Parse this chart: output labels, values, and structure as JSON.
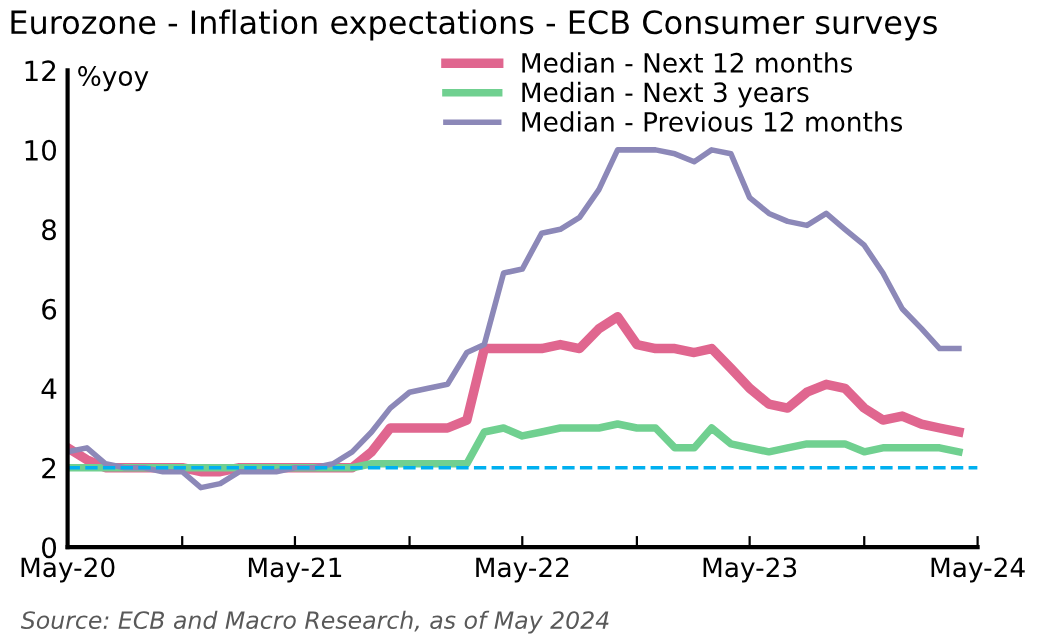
{
  "chart_data": {
    "type": "line",
    "title": "Eurozone - Inflation expectations - ECB Consumer surveys",
    "ylabel": "%yoy",
    "x": [
      "2020-05",
      "2020-06",
      "2020-07",
      "2020-08",
      "2020-09",
      "2020-10",
      "2020-11",
      "2020-12",
      "2021-01",
      "2021-02",
      "2021-03",
      "2021-04",
      "2021-05",
      "2021-06",
      "2021-07",
      "2021-08",
      "2021-09",
      "2021-10",
      "2021-11",
      "2021-12",
      "2022-01",
      "2022-02",
      "2022-03",
      "2022-04",
      "2022-05",
      "2022-06",
      "2022-07",
      "2022-08",
      "2022-09",
      "2022-10",
      "2022-11",
      "2022-12",
      "2023-01",
      "2023-02",
      "2023-03",
      "2023-04",
      "2023-05",
      "2023-06",
      "2023-07",
      "2023-08",
      "2023-09",
      "2023-10",
      "2023-11",
      "2023-12",
      "2024-01",
      "2024-02",
      "2024-03",
      "2024-04"
    ],
    "series": [
      {
        "name": "Median - Next 12 months",
        "color": "#e0668f",
        "values": [
          2.5,
          2.2,
          2.0,
          2.0,
          2.0,
          2.0,
          2.0,
          1.9,
          1.9,
          2.0,
          2.0,
          2.0,
          2.0,
          2.0,
          2.0,
          2.0,
          2.4,
          3.0,
          3.0,
          3.0,
          3.0,
          3.2,
          5.0,
          5.0,
          5.0,
          5.0,
          5.1,
          5.0,
          5.5,
          5.8,
          5.1,
          5.0,
          5.0,
          4.9,
          5.0,
          4.5,
          4.0,
          3.6,
          3.5,
          3.9,
          4.1,
          4.0,
          3.5,
          3.2,
          3.3,
          3.1,
          3.0,
          2.9
        ]
      },
      {
        "name": "Median - Next 3 years",
        "color": "#70d090",
        "values": [
          2.0,
          2.0,
          2.0,
          2.0,
          2.0,
          2.0,
          2.0,
          2.0,
          2.0,
          2.0,
          2.0,
          2.0,
          2.0,
          2.0,
          2.0,
          2.0,
          2.1,
          2.1,
          2.1,
          2.1,
          2.1,
          2.1,
          2.9,
          3.0,
          2.8,
          2.9,
          3.0,
          3.0,
          3.0,
          3.1,
          3.0,
          3.0,
          2.5,
          2.5,
          3.0,
          2.6,
          2.5,
          2.4,
          2.5,
          2.6,
          2.6,
          2.6,
          2.4,
          2.5,
          2.5,
          2.5,
          2.5,
          2.4
        ]
      },
      {
        "name": "Median - Previous 12 months",
        "color": "#8c88b8",
        "values": [
          2.4,
          2.5,
          2.1,
          2.0,
          2.0,
          1.9,
          1.9,
          1.5,
          1.6,
          1.9,
          1.9,
          1.9,
          2.0,
          2.0,
          2.1,
          2.4,
          2.9,
          3.5,
          3.9,
          4.0,
          4.1,
          4.9,
          5.1,
          6.9,
          7.0,
          7.9,
          8.0,
          8.3,
          9.0,
          10.0,
          10.0,
          10.0,
          9.9,
          9.7,
          10.0,
          9.9,
          8.8,
          8.4,
          8.2,
          8.1,
          8.4,
          8.0,
          7.6,
          6.9,
          6.0,
          5.5,
          5.0,
          5.0
        ]
      }
    ],
    "ref_lines": [
      {
        "axis": "y",
        "value": 2,
        "color": "#00b0f0",
        "line_style": "dashed"
      }
    ],
    "xlim": [
      "2020-05",
      "2024-05"
    ],
    "xticks": [
      {
        "value": "2020-05",
        "label": "May-20"
      },
      {
        "value": "2020-11",
        "label": null
      },
      {
        "value": "2021-05",
        "label": "May-21"
      },
      {
        "value": "2021-11",
        "label": null
      },
      {
        "value": "2022-05",
        "label": "May-22"
      },
      {
        "value": "2022-11",
        "label": null
      },
      {
        "value": "2023-05",
        "label": "May-23"
      },
      {
        "value": "2023-11",
        "label": null
      },
      {
        "value": "2024-05",
        "label": "May-24"
      }
    ],
    "ylim": [
      0,
      12
    ],
    "yticks": [
      0,
      2,
      4,
      6,
      8,
      10,
      12
    ],
    "grid": false,
    "legend": "top right",
    "line_style": "solid",
    "marker": "none",
    "annotations": [
      "Source: ECB and Macro Research, as of May 2024"
    ]
  }
}
